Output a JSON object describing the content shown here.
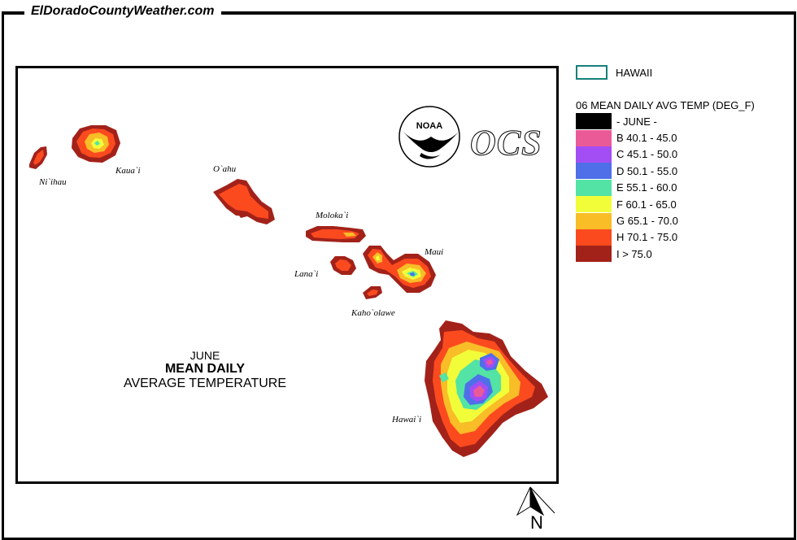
{
  "site": {
    "title": "ElDoradoCountyWeather.com"
  },
  "map": {
    "caption_month": "JUNE",
    "caption_line1": "MEAN DAILY",
    "caption_line2": "AVERAGE TEMPERATURE",
    "islands": [
      {
        "name": "Ni`ihau"
      },
      {
        "name": "Kaua`i"
      },
      {
        "name": "O`ahu"
      },
      {
        "name": "Moloka`i"
      },
      {
        "name": "Lana`i"
      },
      {
        "name": "Maui"
      },
      {
        "name": "Kaho`olawe"
      },
      {
        "name": "Hawai`i"
      }
    ],
    "logos": {
      "noaa": "NOAA",
      "ocs": "OCS"
    },
    "north_label": "N"
  },
  "legend": {
    "state_label": "HAWAII",
    "state_color": "#17807a",
    "title": "06 MEAN DAILY AVG TEMP (DEG_F)",
    "items": [
      {
        "label": "- JUNE -",
        "color": "#000000"
      },
      {
        "label": "B 40.1 - 45.0",
        "color": "#ea5a97"
      },
      {
        "label": "C 45.1 - 50.0",
        "color": "#a34ef5"
      },
      {
        "label": "D 50.1 - 55.0",
        "color": "#4f6fe8"
      },
      {
        "label": "E 55.1 - 60.0",
        "color": "#52e3a5"
      },
      {
        "label": "F 60.1 - 65.0",
        "color": "#f2fd3a"
      },
      {
        "label": "G 65.1 - 70.0",
        "color": "#f8bd27"
      },
      {
        "label": "H 70.1 - 75.0",
        "color": "#fc4a1f"
      },
      {
        "label": "I > 75.0",
        "color": "#a2221a"
      }
    ]
  }
}
